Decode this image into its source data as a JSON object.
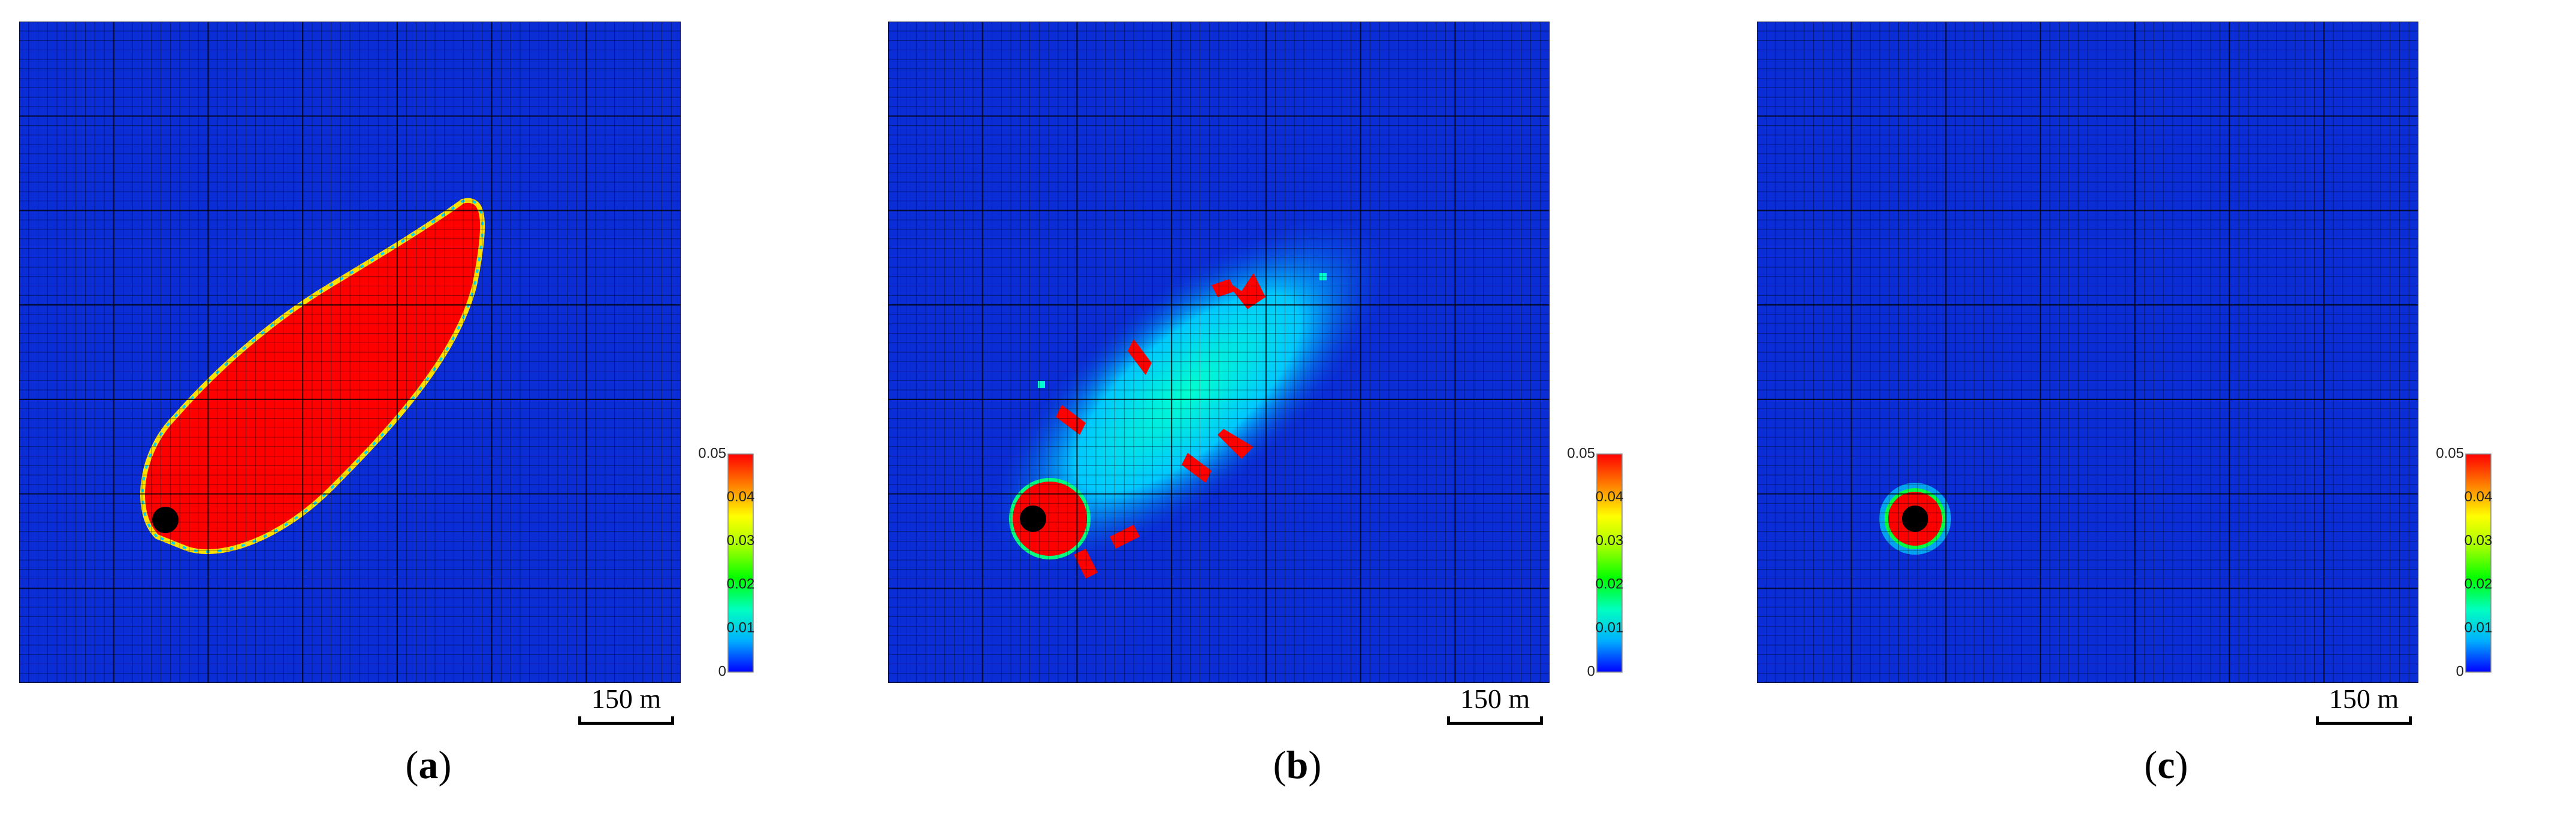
{
  "panels": [
    {
      "id": "a",
      "caption_open": "(",
      "caption_letter": "a",
      "caption_close": ")",
      "scale_label": "150 m"
    },
    {
      "id": "b",
      "caption_open": "(",
      "caption_letter": "b",
      "caption_close": ")",
      "scale_label": "150 m"
    },
    {
      "id": "c",
      "caption_open": "(",
      "caption_letter": "c",
      "caption_close": ")",
      "scale_label": "150 m"
    }
  ],
  "colorbar": {
    "min_label": "0",
    "max_label": "0.05",
    "ticks": [
      "0.01",
      "0.02",
      "0.03",
      "0.04"
    ],
    "colors": [
      "#0000ff",
      "#00b0ff",
      "#00ffc0",
      "#00ff00",
      "#a0ff00",
      "#ffff00",
      "#ff8000",
      "#ff0000"
    ]
  },
  "colors": {
    "background_field": "#0a2dd6",
    "grid_line": "#000000",
    "plume_high": "#ff0000",
    "plume_mid": "#00d4ff",
    "well": "#000000"
  },
  "icons": {
    "well": "black-dot-icon"
  }
}
